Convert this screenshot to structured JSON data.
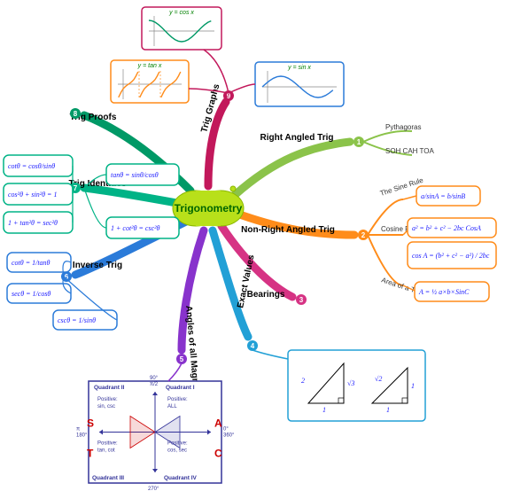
{
  "center": {
    "label": "Trigonometry",
    "fill": "#b8e01a",
    "stroke": "#8ab800"
  },
  "branches": [
    {
      "id": 1,
      "label": "Right Angled Trig",
      "color": "#8bc34a",
      "subs": [
        {
          "label": "Pythagoras"
        },
        {
          "label": "SOH CAH TOA"
        }
      ]
    },
    {
      "id": 2,
      "label": "Non-Right Angled Trig",
      "color": "#ff8c1a",
      "subs": [
        {
          "label": "The Sine Rule",
          "formula": "a/sinA = b/sinB"
        },
        {
          "label": "Cosine Rules",
          "formula": "a² = b² + c² − 2bc CosA",
          "formula2": "cos A = (b² + c² − a²) / 2bc"
        },
        {
          "label": "Area of a Triangle",
          "formula": "A = ½ a×b×SinC"
        }
      ]
    },
    {
      "id": 3,
      "label": "Bearings",
      "color": "#d63384"
    },
    {
      "id": 4,
      "label": "Exact Values",
      "color": "#22a0d6",
      "triangles": {
        "box_stroke": "#22a0d6",
        "t1": {
          "hyp": "2",
          "opp": "√3",
          "adj": "1"
        },
        "t2": {
          "hyp": "√2",
          "opp": "1",
          "adj": "1"
        },
        "value_color": "#cc0000"
      }
    },
    {
      "id": 5,
      "label": "Angles of all Magnitude",
      "color": "#8833cc",
      "quadrants": {
        "box_stroke": "#333399",
        "title": {
          "q1": "Quadrant I",
          "q2": "Quadrant II",
          "q3": "Quadrant III",
          "q4": "Quadrant IV"
        },
        "pos": {
          "q1": "Positive:\nALL",
          "q2": "Positive:\nsin, csc",
          "q3": "Positive:\ntan, cot",
          "q4": "Positive:\ncos, sec"
        },
        "letters": {
          "S": "S",
          "A": "A",
          "T": "T",
          "C": "C"
        },
        "letter_colors": {
          "S": "#cc0000",
          "A": "#cc0000",
          "T": "#cc0000",
          "C": "#cc0000"
        },
        "angles": {
          "top": "90°\nπ/2",
          "right": "0°\n360°",
          "bottom": "270°",
          "left": "π\n180°"
        }
      }
    },
    {
      "id": 6,
      "label": "Inverse Trig",
      "color": "#2b7bd9",
      "formulas": [
        "cotθ = 1/tanθ",
        "secθ = 1/cosθ",
        "cscθ = 1/sinθ"
      ]
    },
    {
      "id": 7,
      "label": "Trig Identities",
      "color": "#00b386",
      "left": [
        "cotθ = cosθ/sinθ",
        "cos²θ + sin²θ = 1",
        "1 + tan²θ = sec²θ"
      ],
      "right": [
        "tanθ = sinθ/cosθ",
        "1 + cot²θ = csc²θ"
      ]
    },
    {
      "id": 8,
      "label": "Trig Proofs",
      "color": "#009966"
    },
    {
      "id": 9,
      "label": "Trig Graphs",
      "color": "#c2185b",
      "graphs": [
        {
          "title": "y = cos x",
          "box_stroke": "#c2185b"
        },
        {
          "title": "y = tan x",
          "box_stroke": "#ff8c1a"
        },
        {
          "title": "y = sin x",
          "box_stroke": "#2b7bd9"
        }
      ]
    }
  ],
  "colors": {
    "bg": "#ffffff",
    "grid": "#cccccc",
    "axis": "#666666"
  }
}
